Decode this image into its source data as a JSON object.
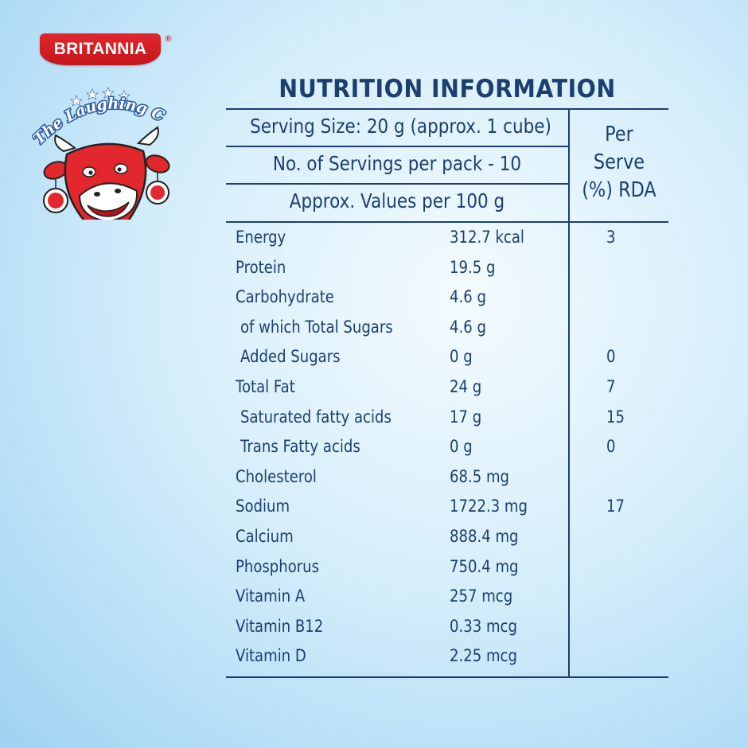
{
  "brand": {
    "name": "BRITANNIA",
    "registered": "®",
    "sub_brand": "The Laughing Cow",
    "sub_brand_mark": "®",
    "colors": {
      "red": "#e2272d",
      "navy": "#1b3f6e",
      "sky": "#9fd3f2"
    }
  },
  "nutrition": {
    "title": "NUTRITION INFORMATION",
    "serving_size": "Serving Size: 20 g (approx. 1 cube)",
    "servings_per_pack": "No. of Servings per pack - 10",
    "values_basis": "Approx. Values per 100 g",
    "rda_header": [
      "Per",
      "Serve",
      "(%) RDA"
    ],
    "rows": [
      {
        "name": "Energy",
        "value": "312.7 kcal",
        "rda": "3"
      },
      {
        "name": "Protein",
        "value": "19.5 g",
        "rda": ""
      },
      {
        "name": "Carbohydrate",
        "value": "4.6 g",
        "rda": ""
      },
      {
        "name": "of which Total Sugars",
        "value": "4.6 g",
        "rda": ""
      },
      {
        "name": "Added Sugars",
        "value": "0 g",
        "rda": "0"
      },
      {
        "name": "Total Fat",
        "value": "24 g",
        "rda": "7"
      },
      {
        "name": "Saturated fatty acids",
        "value": "17 g",
        "rda": "15"
      },
      {
        "name": "Trans Fatty acids",
        "value": "0 g",
        "rda": "0"
      },
      {
        "name": "Cholesterol",
        "value": "68.5 mg",
        "rda": ""
      },
      {
        "name": "Sodium",
        "value": "1722.3 mg",
        "rda": "17"
      },
      {
        "name": "Calcium",
        "value": "888.4 mg",
        "rda": ""
      },
      {
        "name": "Phosphorus",
        "value": "750.4 mg",
        "rda": ""
      },
      {
        "name": "Vitamin A",
        "value": "257 mcg",
        "rda": ""
      },
      {
        "name": "Vitamin B12",
        "value": "0.33 mcg",
        "rda": ""
      },
      {
        "name": "Vitamin D",
        "value": "2.25 mcg",
        "rda": ""
      }
    ]
  }
}
